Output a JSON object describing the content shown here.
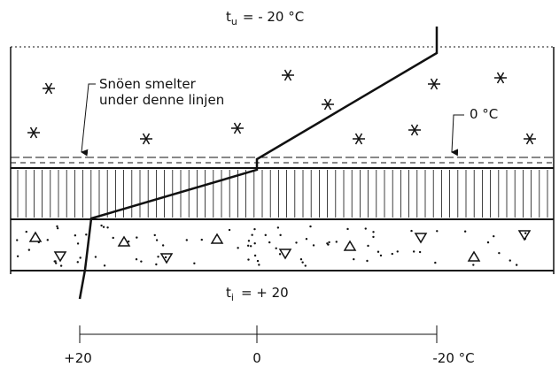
{
  "top_temperature": {
    "symbol": "t",
    "subscript": "u",
    "text": "= - 20 °C"
  },
  "snow_annotation": {
    "lines": [
      "Snöen smelter",
      "under denne linjen"
    ]
  },
  "zero_annotation": "0 °C",
  "inside_temperature": {
    "symbol": "t",
    "subscript": "i",
    "text": "= + 20"
  },
  "scale_labels": [
    "+20",
    "0",
    "-20 °C"
  ]
}
